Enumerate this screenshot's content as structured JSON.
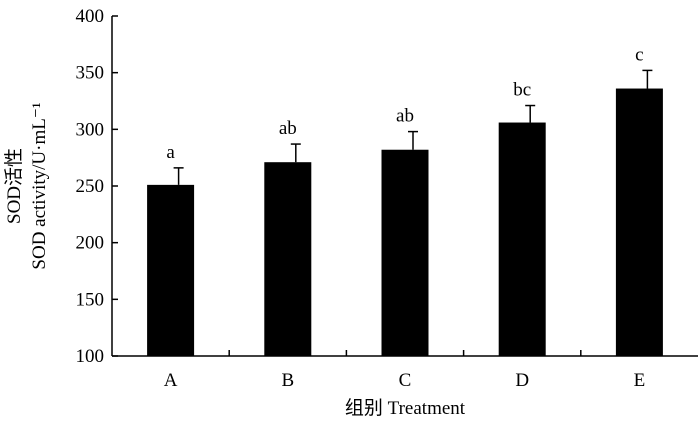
{
  "chart_data": {
    "type": "bar",
    "categories": [
      "A",
      "B",
      "C",
      "D",
      "E"
    ],
    "values": [
      251,
      271,
      282,
      306,
      336
    ],
    "errors": [
      15,
      16,
      16,
      15,
      16
    ],
    "significance": [
      "a",
      "ab",
      "ab",
      "bc",
      "c"
    ],
    "title": "",
    "xlabel": "组别 Treatment",
    "ylabel_line1": "SOD活性",
    "ylabel_line2": "SOD activity/U·mL⁻¹",
    "ylim": [
      100,
      400
    ],
    "yticks": [
      100,
      150,
      200,
      250,
      300,
      350,
      400
    ],
    "bar_color": "#000000",
    "grid": false,
    "legend": "none"
  }
}
